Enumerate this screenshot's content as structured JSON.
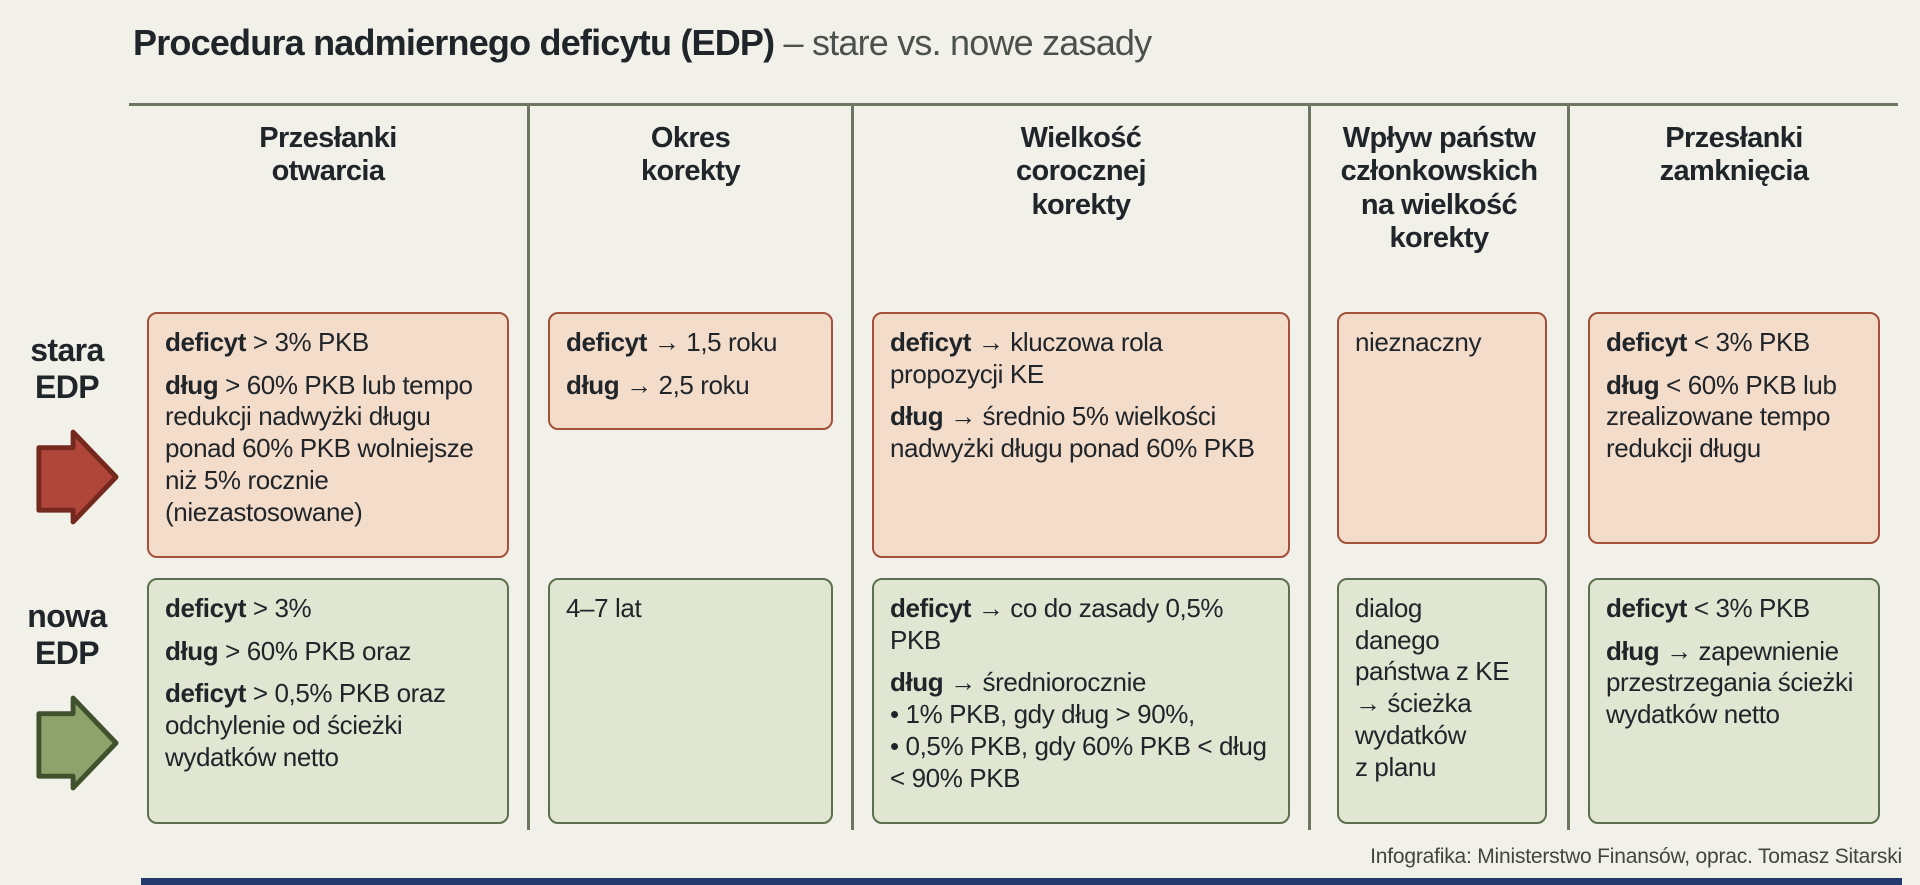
{
  "title": {
    "main": "Procedura nadmiernego deficytu (EDP)",
    "subtitle": "– stare vs. nowe zasady"
  },
  "columns": [
    {
      "lines": [
        "Przesłanki",
        "otwarcia"
      ]
    },
    {
      "lines": [
        "Okres",
        "korekty"
      ]
    },
    {
      "lines": [
        "Wielkość",
        "corocznej",
        "korekty"
      ]
    },
    {
      "lines": [
        "Wpływ państw",
        "członkowskich",
        "na wielkość",
        "korekty"
      ]
    },
    {
      "lines": [
        "Przesłanki",
        "zamknięcia"
      ]
    }
  ],
  "rows": [
    {
      "label_lines": [
        "stara",
        "EDP"
      ],
      "cells": [
        {
          "paragraphs": [
            {
              "runs": [
                {
                  "b": true,
                  "t": "deficyt"
                },
                {
                  "t": " > 3% PKB"
                }
              ]
            },
            {
              "runs": [
                {
                  "b": true,
                  "t": "dług"
                },
                {
                  "t": " > 60% PKB lub tempo redukcji nadwyżki długu ponad 60% PKB wolniejsze niż 5% rocznie (niezastosowane)"
                }
              ]
            }
          ]
        },
        {
          "paragraphs": [
            {
              "runs": [
                {
                  "b": true,
                  "t": "deficyt"
                },
                {
                  "t": " → 1,5 roku"
                }
              ]
            },
            {
              "runs": [
                {
                  "b": true,
                  "t": "dług"
                },
                {
                  "t": " → 2,5 roku"
                }
              ]
            }
          ]
        },
        {
          "paragraphs": [
            {
              "runs": [
                {
                  "b": true,
                  "t": "deficyt"
                },
                {
                  "t": " → kluczowa rola propozycji KE"
                }
              ]
            },
            {
              "runs": [
                {
                  "b": true,
                  "t": "dług"
                },
                {
                  "t": " → średnio 5% wielkości nadwyżki długu ponad 60% PKB"
                }
              ]
            }
          ]
        },
        {
          "paragraphs": [
            {
              "runs": [
                {
                  "t": "nieznaczny"
                }
              ]
            }
          ]
        },
        {
          "paragraphs": [
            {
              "runs": [
                {
                  "b": true,
                  "t": "deficyt"
                },
                {
                  "t": " < 3% PKB"
                }
              ]
            },
            {
              "runs": [
                {
                  "b": true,
                  "t": "dług"
                },
                {
                  "t": " < 60% PKB lub zrealizowane tempo redukcji długu"
                }
              ]
            }
          ]
        }
      ]
    },
    {
      "label_lines": [
        "nowa",
        "EDP"
      ],
      "cells": [
        {
          "paragraphs": [
            {
              "runs": [
                {
                  "b": true,
                  "t": "deficyt"
                },
                {
                  "t": " > 3%"
                }
              ]
            },
            {
              "runs": [
                {
                  "b": true,
                  "t": "dług"
                },
                {
                  "t": " > 60% PKB oraz"
                }
              ]
            },
            {
              "runs": [
                {
                  "b": true,
                  "t": "deficyt"
                },
                {
                  "t": " > 0,5% PKB oraz odchylenie od ścieżki wydatków netto"
                }
              ]
            }
          ]
        },
        {
          "paragraphs": [
            {
              "runs": [
                {
                  "t": "4–7 lat"
                }
              ]
            }
          ]
        },
        {
          "paragraphs": [
            {
              "runs": [
                {
                  "b": true,
                  "t": "deficyt"
                },
                {
                  "t": " → co do zasady 0,5% PKB"
                }
              ]
            },
            {
              "tight": true,
              "runs": [
                {
                  "b": true,
                  "t": "dług"
                },
                {
                  "t": " → średniorocznie"
                }
              ]
            },
            {
              "tight": true,
              "runs": [
                {
                  "t": "• 1% PKB, gdy dług > 90%,"
                }
              ]
            },
            {
              "tight": true,
              "runs": [
                {
                  "t": "• 0,5% PKB, gdy 60% PKB < dług < 90% PKB"
                }
              ]
            }
          ]
        },
        {
          "paragraphs": [
            {
              "runs": [
                {
                  "t": "dialog\ndanego\npaństwa z KE\n→ ścieżka\nwydatków\nz planu"
                }
              ]
            }
          ]
        },
        {
          "paragraphs": [
            {
              "runs": [
                {
                  "b": true,
                  "t": "deficyt"
                },
                {
                  "t": " < 3% PKB"
                }
              ]
            },
            {
              "runs": [
                {
                  "b": true,
                  "t": "dług"
                },
                {
                  "t": " → zapewnienie przestrzegania ścieżki wydatków netto"
                }
              ]
            }
          ]
        }
      ]
    }
  ],
  "footer": "Infografika: Ministerstwo Finansów, oprac. Tomasz Sitarski",
  "colors": {
    "background": "#f1f1ea",
    "grid_line": "#6c7660",
    "text": "#20252a",
    "title_secondary": "#4b514c",
    "old_cell_bg": "#f4dccb",
    "old_cell_border": "#a3503c",
    "old_arrow_fill": "#b0453a",
    "old_arrow_stroke": "#74281e",
    "new_cell_bg": "#e0e6d1",
    "new_cell_border": "#5d6f4e",
    "new_arrow_fill": "#8ea26c",
    "new_arrow_stroke": "#41512e",
    "bottom_bar": "#24396e",
    "footer_text": "#41463f"
  }
}
